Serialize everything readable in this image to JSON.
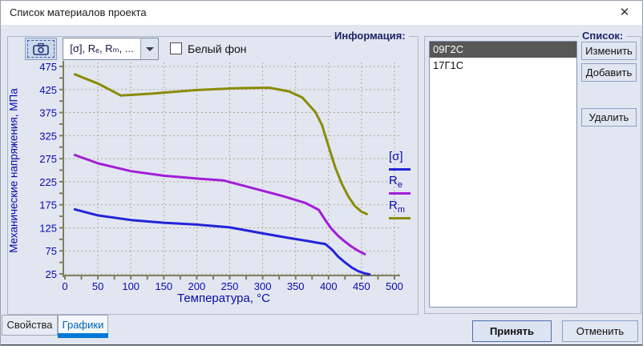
{
  "window": {
    "title": "Список материалов проекта",
    "close_glyph": "✕"
  },
  "groups": {
    "info_label": "Информация:",
    "list_label": "Список:"
  },
  "toolbar": {
    "camera_icon": "camera-screenshot-icon",
    "combo_value": "[σ], Rₑ, Rₘ, ...",
    "white_bg_label": "Белый фон",
    "white_bg_checked": false
  },
  "tabs": [
    {
      "label": "Свойства",
      "active": false
    },
    {
      "label": "Графики",
      "active": true
    }
  ],
  "materials": {
    "items": [
      {
        "name": "09Г2С",
        "selected": true
      },
      {
        "name": "17Г1С",
        "selected": false
      }
    ]
  },
  "buttons": {
    "edit": "Изменить",
    "add": "Добавить",
    "delete": "Удалить",
    "accept": "Принять",
    "cancel": "Отменить"
  },
  "legend": [
    {
      "base": "[σ]",
      "sub": ""
    },
    {
      "base": "R",
      "sub": "e"
    },
    {
      "base": "R",
      "sub": "m"
    }
  ],
  "colors": {
    "accent_tab": "#0078d7",
    "list_selection": "#575757",
    "chart_text": "#0a0ab0",
    "dialog_bg": "#e2e6f0"
  },
  "chart_data": {
    "type": "line",
    "title": "",
    "xlabel": "Температура, °C",
    "ylabel": "Механические напряжения, МПа",
    "xlim": [
      0,
      500
    ],
    "ylim": [
      25,
      475
    ],
    "xticks": [
      0,
      50,
      100,
      150,
      200,
      250,
      300,
      350,
      400,
      450,
      500
    ],
    "yticks": [
      25,
      75,
      125,
      175,
      225,
      275,
      325,
      375,
      425,
      475
    ],
    "grid": true,
    "legend_position": "right-inside",
    "series": [
      {
        "name": "[σ]",
        "color": "#2424d8",
        "points": [
          [
            15,
            165
          ],
          [
            50,
            152
          ],
          [
            100,
            142
          ],
          [
            150,
            136
          ],
          [
            200,
            132
          ],
          [
            250,
            126
          ],
          [
            300,
            113
          ],
          [
            340,
            103
          ],
          [
            370,
            96
          ],
          [
            385,
            92
          ],
          [
            395,
            90
          ],
          [
            405,
            78
          ],
          [
            415,
            62
          ],
          [
            425,
            50
          ],
          [
            435,
            39
          ],
          [
            445,
            31
          ],
          [
            455,
            26
          ],
          [
            462,
            24
          ]
        ]
      },
      {
        "name": "Re",
        "color": "#a21ed8",
        "points": [
          [
            15,
            283
          ],
          [
            50,
            265
          ],
          [
            100,
            248
          ],
          [
            150,
            238
          ],
          [
            200,
            232
          ],
          [
            240,
            228
          ],
          [
            280,
            213
          ],
          [
            330,
            194
          ],
          [
            365,
            179
          ],
          [
            385,
            164
          ],
          [
            395,
            142
          ],
          [
            405,
            122
          ],
          [
            415,
            107
          ],
          [
            425,
            95
          ],
          [
            435,
            84
          ],
          [
            445,
            75
          ],
          [
            455,
            68
          ]
        ]
      },
      {
        "name": "Rm",
        "color": "#8b8b06",
        "points": [
          [
            15,
            458
          ],
          [
            50,
            438
          ],
          [
            85,
            412
          ],
          [
            130,
            416
          ],
          [
            200,
            424
          ],
          [
            260,
            428
          ],
          [
            310,
            429
          ],
          [
            340,
            421
          ],
          [
            360,
            408
          ],
          [
            380,
            376
          ],
          [
            390,
            348
          ],
          [
            400,
            302
          ],
          [
            410,
            257
          ],
          [
            420,
            221
          ],
          [
            430,
            193
          ],
          [
            440,
            172
          ],
          [
            450,
            160
          ],
          [
            458,
            155
          ]
        ]
      }
    ]
  }
}
